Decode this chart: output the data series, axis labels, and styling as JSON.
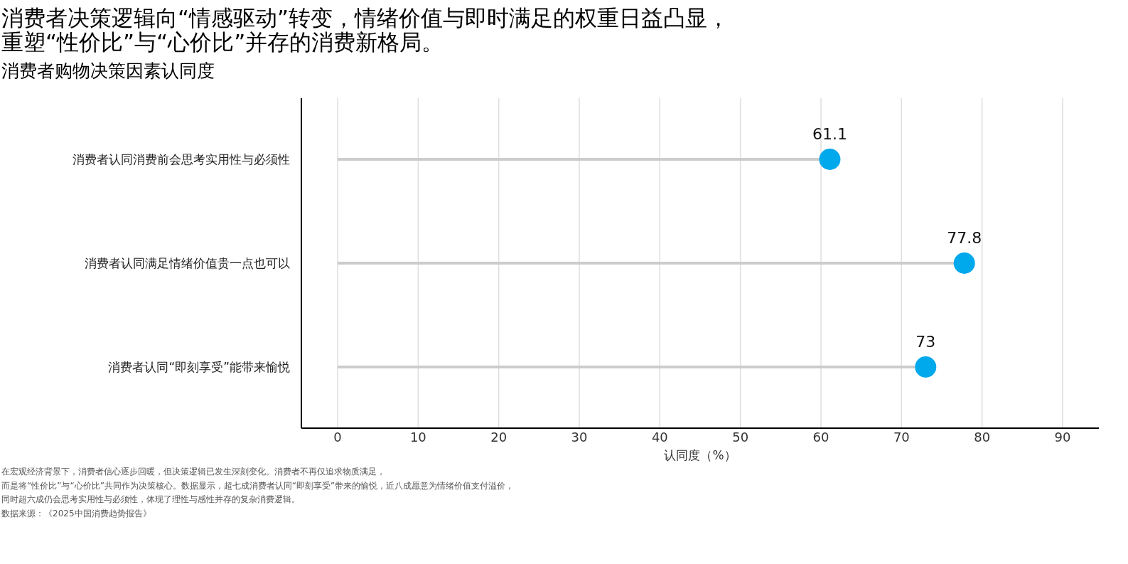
{
  "chart_data": {
    "type": "lollipop",
    "orientation": "horizontal",
    "title": "消费者决策逻辑向“情感驱动”转变，情绪价值与即时满足的权重日益凸显，重塑“性价比”与“心价比”并存的消费新格局。",
    "subtitle": "消费者购物决策因素认同度",
    "xlabel": "认同度（%）",
    "categories": [
      "消费者认同消费前会思考实用性与必须性",
      "消费者认同满足情绪价值贵一点也可以",
      "消费者认同“即刻享受”能带来愉悦"
    ],
    "values": [
      61.1,
      77.8,
      73
    ],
    "color": "#00a8ec",
    "xlim": [
      -4.5,
      94.5
    ],
    "xticks": [
      0,
      10,
      20,
      30,
      40,
      50,
      60,
      70,
      80,
      90
    ],
    "grid": "x",
    "data_labels": true,
    "annotations": [
      "在宏观经济背景下，消费者信心逐步回暖，但决策逻辑已发生深刻变化。消费者不再仅追求物质满足，",
      "而是将“性价比”与“心价比”共同作为决策核心。数据显示，超七成消费者认同“即刻享受”带来的愉悦，近八成愿意为情绪价值支付溢价，",
      "同时超六成仍会思考实用性与必须性，体现了理性与感性并存的复杂消费逻辑。",
      "数据来源：《2025中国消费趋势报告》"
    ]
  }
}
